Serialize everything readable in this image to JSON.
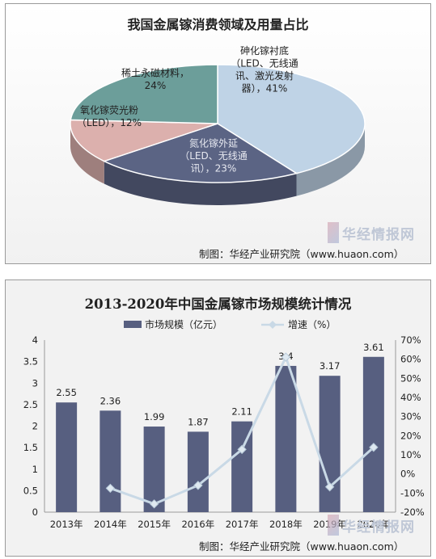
{
  "pie_panel": {
    "title": "我国金属镓消费领域及用量占比",
    "source": "制图：华经产业研究院（www.huaon.com）",
    "watermark": "华经情报网"
  },
  "bar_panel": {
    "title": "2013-2020年中国金属镓市场规模统计情况",
    "source": "制图：华经产业研究院（www.huaon.com）",
    "watermark": "华经情报网"
  },
  "colors": {
    "pie_gaas": "#bfd3e6",
    "pie_gan": "#5b6484",
    "pie_phosphor": "#dcb0ad",
    "pie_magnet": "#6c9e9a",
    "bar": "#575f80",
    "line": "#c9d9e6"
  },
  "chart_data": [
    {
      "type": "pie",
      "title": "我国金属镓消费领域及用量占比",
      "slices": [
        {
          "name": "砷化镓衬底",
          "value": 41,
          "label_lines": [
            "砷化镓衬底",
            "（LED、无线通",
            "讯、激光发射",
            "器），41%"
          ]
        },
        {
          "name": "氮化镓外延",
          "value": 23,
          "label_lines": [
            "氮化镓外延",
            "（LED、无线通",
            "讯），23%"
          ]
        },
        {
          "name": "氧化镓荧光粉",
          "value": 12,
          "label_lines": [
            "氧化镓荧光粉",
            "（LED），12%"
          ]
        },
        {
          "name": "稀土永磁材料",
          "value": 24,
          "label_lines": [
            "稀土永磁材料，",
            "24%"
          ]
        }
      ]
    },
    {
      "type": "bar",
      "title": "2013-2020年中国金属镓市场规模统计情况",
      "categories": [
        "2013年",
        "2014年",
        "2015年",
        "2016年",
        "2017年",
        "2018年",
        "2019年",
        "2020年"
      ],
      "series": [
        {
          "name": "市场规模（亿元）",
          "type": "bar",
          "axis": "left",
          "values": [
            2.55,
            2.36,
            1.99,
            1.87,
            2.11,
            3.4,
            3.17,
            3.61
          ],
          "labels": [
            "2.55",
            "2.36",
            "1.99",
            "1.87",
            "2.11",
            "3.4",
            "3.17",
            "3.61"
          ]
        },
        {
          "name": "增速（%）",
          "type": "line",
          "axis": "right",
          "values": [
            null,
            -7.5,
            -15.7,
            -6.0,
            12.8,
            61.1,
            -6.8,
            13.9
          ]
        }
      ],
      "ylim": [
        0,
        4
      ],
      "yticks": [
        "0",
        "0.5",
        "1",
        "1.5",
        "2",
        "2.5",
        "3",
        "3.5",
        "4"
      ],
      "y2lim": [
        -20,
        70
      ],
      "y2ticks": [
        "-20%",
        "-10%",
        "0%",
        "10%",
        "20%",
        "30%",
        "40%",
        "50%",
        "60%",
        "70%"
      ],
      "legend": "top",
      "grid": false
    }
  ]
}
